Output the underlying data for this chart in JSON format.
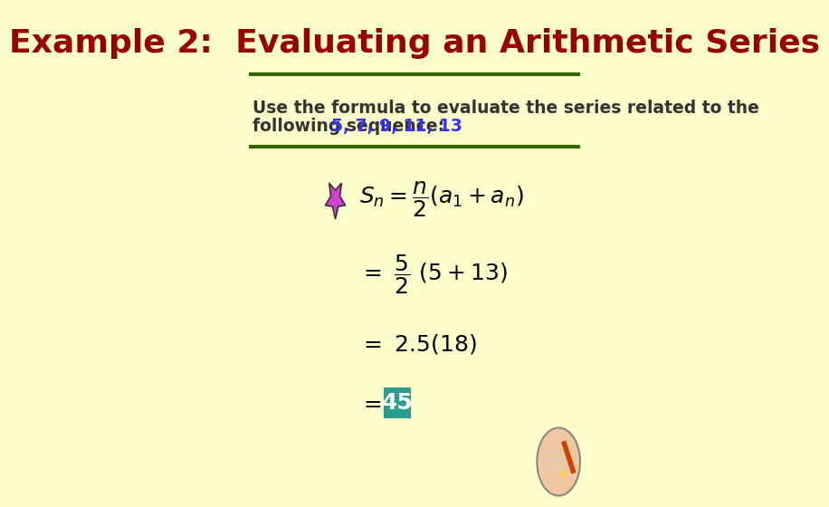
{
  "bg_color": "#FFFFCC",
  "title": "Example 2:  Evaluating an Arithmetic Series",
  "title_color": "#990000",
  "title_fontsize": 26,
  "title_fontstyle": "bold",
  "divider_color": "#336600",
  "divider_linewidth": 3,
  "problem_text_color": "#333333",
  "problem_text": "Use the formula to evaluate the series related to the\nfollowing sequence:  ",
  "sequence_text": "5, 7, 9, 11, 13",
  "sequence_color": "#3333FF",
  "formula_color": "#000000",
  "star_color_fill": "#CC44CC",
  "star_color_edge": "#333333",
  "teal_box_color": "#2A9D8F",
  "answer_text": "45",
  "answer_color": "#FFFFFF"
}
